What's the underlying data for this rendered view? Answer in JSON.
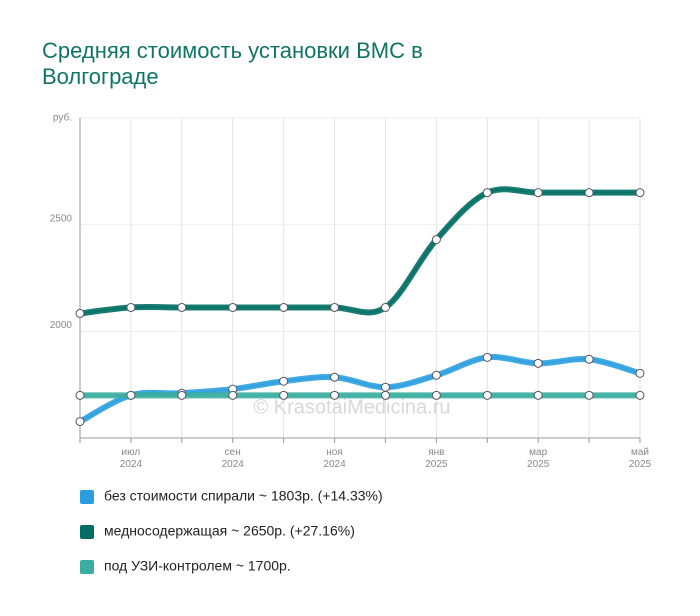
{
  "chart_data": {
    "type": "line",
    "title": "Средняя стоимость установки ВМС в Волгограде",
    "watermark": "© KrasotaiMedicina.ru",
    "categories": [
      null,
      "июл 2024",
      null,
      "сен 2024",
      null,
      "ноя 2024",
      null,
      "янв 2025",
      null,
      "мар 2025",
      null,
      "май 2025"
    ],
    "series": [
      {
        "name": "без стоимости спирали ~ 1803р. (+14.33%)",
        "color": "#2b9ee0",
        "values": [
          1577,
          1700,
          1710,
          1729,
          1766,
          1785,
          1738,
          1794,
          1878,
          1850,
          1869,
          1803
        ]
      },
      {
        "name": "медносодержащая ~ 2650р. (+27.16%)",
        "color": "#006e63",
        "values": [
          2084,
          2112,
          2112,
          2112,
          2112,
          2112,
          2112,
          2430,
          2650,
          2650,
          2650,
          2650
        ]
      },
      {
        "name": "под УЗИ-контролем ~ 1700р.",
        "color": "#3aada0",
        "values": [
          1700,
          1700,
          1700,
          1700,
          1700,
          1700,
          1700,
          1700,
          1700,
          1700,
          1700,
          1700
        ]
      }
    ],
    "ylim": [
      1500,
      3000
    ],
    "yticks": [
      2000,
      2500,
      {
        "value": 3000,
        "label": "руб."
      }
    ],
    "grid": true
  }
}
